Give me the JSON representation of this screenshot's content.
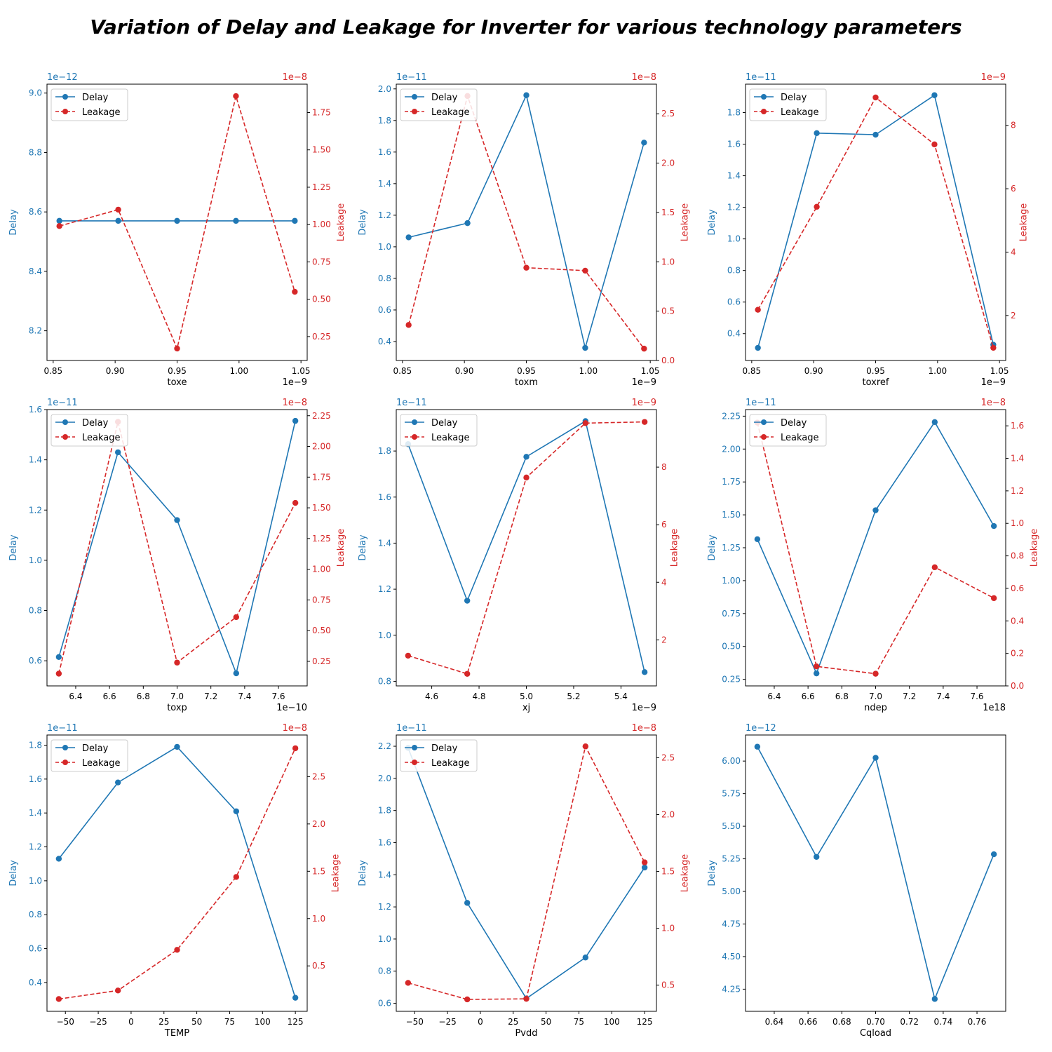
{
  "title": "Variation of Delay and Leakage for Inverter for various technology parameters",
  "colors": {
    "delay": "#1f77b4",
    "leakage": "#d62728",
    "axis": "#000000",
    "legend_border": "#cccccc"
  },
  "legend": {
    "delay_label": "Delay",
    "leakage_label": "Leakage"
  },
  "chart_data": [
    {
      "type": "line",
      "xlabel": "toxe",
      "ylabel": "Delay",
      "y2label": "Leakage",
      "x": [
        0.855,
        0.9025,
        0.95,
        0.9975,
        1.045
      ],
      "x_offset": "1e−9",
      "xlim": [
        0.845,
        1.055
      ],
      "xticks": [
        0.85,
        0.9,
        0.95,
        1.0,
        1.05
      ],
      "xtick_labels": [
        "0.85",
        "0.90",
        "0.95",
        "1.00",
        "1.05"
      ],
      "delay": [
        8.57,
        8.57,
        8.57,
        8.57,
        8.57
      ],
      "y_offset": "1e−12",
      "ylim": [
        8.1,
        9.03
      ],
      "yticks": [
        8.2,
        8.4,
        8.6,
        8.8,
        9.0
      ],
      "ytick_labels": [
        "8.2",
        "8.4",
        "8.6",
        "8.8",
        "9.0"
      ],
      "leakage": [
        0.99,
        1.1,
        0.17,
        1.86,
        0.55
      ],
      "y2_offset": "1e−8",
      "y2lim": [
        0.09,
        1.94
      ],
      "y2ticks": [
        0.25,
        0.5,
        0.75,
        1.0,
        1.25,
        1.5,
        1.75
      ],
      "y2tick_labels": [
        "0.25",
        "0.50",
        "0.75",
        "1.00",
        "1.25",
        "1.50",
        "1.75"
      ]
    },
    {
      "type": "line",
      "xlabel": "toxm",
      "ylabel": "Delay",
      "y2label": "Leakage",
      "x": [
        0.855,
        0.9025,
        0.95,
        0.9975,
        1.045
      ],
      "x_offset": "1e−9",
      "xlim": [
        0.845,
        1.055
      ],
      "xticks": [
        0.85,
        0.9,
        0.95,
        1.0,
        1.05
      ],
      "xtick_labels": [
        "0.85",
        "0.90",
        "0.95",
        "1.00",
        "1.05"
      ],
      "delay": [
        1.06,
        1.15,
        1.96,
        0.36,
        1.66
      ],
      "y_offset": "1e−11",
      "ylim": [
        0.28,
        2.03
      ],
      "yticks": [
        0.4,
        0.6,
        0.8,
        1.0,
        1.2,
        1.4,
        1.6,
        1.8,
        2.0
      ],
      "ytick_labels": [
        "0.4",
        "0.6",
        "0.8",
        "1.0",
        "1.2",
        "1.4",
        "1.6",
        "1.8",
        "2.0"
      ],
      "leakage": [
        0.36,
        2.68,
        0.94,
        0.91,
        0.12
      ],
      "y2_offset": "1e−8",
      "y2lim": [
        0.0,
        2.8
      ],
      "y2ticks": [
        0.0,
        0.5,
        1.0,
        1.5,
        2.0,
        2.5
      ],
      "y2tick_labels": [
        "0.0",
        "0.5",
        "1.0",
        "1.5",
        "2.0",
        "2.5"
      ]
    },
    {
      "type": "line",
      "xlabel": "toxref",
      "ylabel": "Delay",
      "y2label": "Leakage",
      "x": [
        0.855,
        0.9025,
        0.95,
        0.9975,
        1.045
      ],
      "x_offset": "1e−9",
      "xlim": [
        0.845,
        1.055
      ],
      "xticks": [
        0.85,
        0.9,
        0.95,
        1.0,
        1.05
      ],
      "xtick_labels": [
        "0.85",
        "0.90",
        "0.95",
        "1.00",
        "1.05"
      ],
      "delay": [
        0.31,
        1.67,
        1.66,
        1.91,
        0.33
      ],
      "y_offset": "1e−11",
      "ylim": [
        0.23,
        1.98
      ],
      "yticks": [
        0.4,
        0.6,
        0.8,
        1.0,
        1.2,
        1.4,
        1.6,
        1.8
      ],
      "ytick_labels": [
        "0.4",
        "0.6",
        "0.8",
        "1.0",
        "1.2",
        "1.4",
        "1.6",
        "1.8"
      ],
      "leakage": [
        2.18,
        5.43,
        8.88,
        7.4,
        0.98
      ],
      "y2_offset": "1e−9",
      "y2lim": [
        0.58,
        9.3
      ],
      "y2ticks": [
        2,
        4,
        6,
        8
      ],
      "y2tick_labels": [
        "2",
        "4",
        "6",
        "8"
      ]
    },
    {
      "type": "line",
      "xlabel": "toxp",
      "ylabel": "Delay",
      "y2label": "Leakage",
      "x": [
        6.3,
        6.65,
        7.0,
        7.35,
        7.7
      ],
      "x_offset": "1e−10",
      "xlim": [
        6.23,
        7.77
      ],
      "xticks": [
        6.4,
        6.6,
        6.8,
        7.0,
        7.2,
        7.4,
        7.6
      ],
      "xtick_labels": [
        "6.4",
        "6.6",
        "6.8",
        "7.0",
        "7.2",
        "7.4",
        "7.6"
      ],
      "delay": [
        0.615,
        1.43,
        1.16,
        0.55,
        1.555
      ],
      "y_offset": "1e−11",
      "ylim": [
        0.5,
        1.6
      ],
      "yticks": [
        0.6,
        0.8,
        1.0,
        1.2,
        1.4,
        1.6
      ],
      "ytick_labels": [
        "0.6",
        "0.8",
        "1.0",
        "1.2",
        "1.4",
        "1.6"
      ],
      "leakage": [
        0.15,
        2.2,
        0.24,
        0.61,
        1.54
      ],
      "y2_offset": "1e−8",
      "y2lim": [
        0.05,
        2.3
      ],
      "y2ticks": [
        0.25,
        0.5,
        0.75,
        1.0,
        1.25,
        1.5,
        1.75,
        2.0,
        2.25
      ],
      "y2tick_labels": [
        "0.25",
        "0.50",
        "0.75",
        "1.00",
        "1.25",
        "1.50",
        "1.75",
        "2.00",
        "2.25"
      ]
    },
    {
      "type": "line",
      "xlabel": "xj",
      "ylabel": "Delay",
      "y2label": "Leakage",
      "x": [
        4.5,
        4.75,
        5.0,
        5.25,
        5.5
      ],
      "x_offset": "1e−9",
      "xlim": [
        4.45,
        5.55
      ],
      "xticks": [
        4.6,
        4.8,
        5.0,
        5.2,
        5.4
      ],
      "xtick_labels": [
        "4.6",
        "4.8",
        "5.0",
        "5.2",
        "5.4"
      ],
      "delay": [
        1.83,
        1.15,
        1.775,
        1.93,
        0.84
      ],
      "y_offset": "1e−11",
      "ylim": [
        0.78,
        1.98
      ],
      "yticks": [
        0.8,
        1.0,
        1.2,
        1.4,
        1.6,
        1.8
      ],
      "ytick_labels": [
        "0.8",
        "1.0",
        "1.2",
        "1.4",
        "1.6",
        "1.8"
      ],
      "leakage": [
        1.45,
        0.82,
        7.64,
        9.53,
        9.57
      ],
      "y2_offset": "1e−9",
      "y2lim": [
        0.4,
        10.0
      ],
      "y2ticks": [
        2,
        4,
        6,
        8
      ],
      "y2tick_labels": [
        "2",
        "4",
        "6",
        "8"
      ]
    },
    {
      "type": "line",
      "xlabel": "ndep",
      "ylabel": "Delay",
      "y2label": "Leakage",
      "x": [
        6.3,
        6.65,
        7.0,
        7.35,
        7.7
      ],
      "x_offset": "1e18",
      "xlim": [
        6.23,
        7.77
      ],
      "xticks": [
        6.4,
        6.6,
        6.8,
        7.0,
        7.2,
        7.4,
        7.6
      ],
      "xtick_labels": [
        "6.4",
        "6.6",
        "6.8",
        "7.0",
        "7.2",
        "7.4",
        "7.6"
      ],
      "delay": [
        1.315,
        0.295,
        1.535,
        2.205,
        1.415
      ],
      "y_offset": "1e−11",
      "ylim": [
        0.2,
        2.3
      ],
      "yticks": [
        0.25,
        0.5,
        0.75,
        1.0,
        1.25,
        1.5,
        1.75,
        2.0,
        2.25
      ],
      "ytick_labels": [
        "0.25",
        "0.50",
        "0.75",
        "1.00",
        "1.25",
        "1.50",
        "1.75",
        "2.00",
        "2.25"
      ],
      "leakage": [
        1.62,
        0.12,
        0.075,
        0.73,
        0.54
      ],
      "y2_offset": "1e−8",
      "y2lim": [
        0.0,
        1.7
      ],
      "y2ticks": [
        0.0,
        0.2,
        0.4,
        0.6,
        0.8,
        1.0,
        1.2,
        1.4,
        1.6
      ],
      "y2tick_labels": [
        "0.0",
        "0.2",
        "0.4",
        "0.6",
        "0.8",
        "1.0",
        "1.2",
        "1.4",
        "1.6"
      ]
    },
    {
      "type": "line",
      "xlabel": "TEMP",
      "ylabel": "Delay",
      "y2label": "Leakage",
      "x": [
        -55,
        -10,
        35,
        80,
        125
      ],
      "x_offset": "",
      "xlim": [
        -64,
        134
      ],
      "xticks": [
        -50,
        -25,
        0,
        25,
        50,
        75,
        100,
        125
      ],
      "xtick_labels": [
        "−50",
        "−25",
        "0",
        "25",
        "50",
        "75",
        "100",
        "125"
      ],
      "delay": [
        1.13,
        1.58,
        1.79,
        1.41,
        0.31
      ],
      "y_offset": "1e−11",
      "ylim": [
        0.23,
        1.86
      ],
      "yticks": [
        0.4,
        0.6,
        0.8,
        1.0,
        1.2,
        1.4,
        1.6,
        1.8
      ],
      "ytick_labels": [
        "0.4",
        "0.6",
        "0.8",
        "1.0",
        "1.2",
        "1.4",
        "1.6",
        "1.8"
      ],
      "leakage": [
        0.15,
        0.24,
        0.67,
        1.44,
        2.8
      ],
      "y2_offset": "1e−8",
      "y2lim": [
        0.02,
        2.94
      ],
      "y2ticks": [
        0.5,
        1.0,
        1.5,
        2.0,
        2.5
      ],
      "y2tick_labels": [
        "0.5",
        "1.0",
        "1.5",
        "2.0",
        "2.5"
      ]
    },
    {
      "type": "line",
      "xlabel": "Pvdd",
      "ylabel": "Delay",
      "y2label": "Leakage",
      "x": [
        -55,
        -10,
        35,
        80,
        125
      ],
      "x_offset": "",
      "xlim": [
        -64,
        134
      ],
      "xticks": [
        -50,
        -25,
        0,
        25,
        50,
        75,
        100,
        125
      ],
      "xtick_labels": [
        "−50",
        "−25",
        "0",
        "25",
        "50",
        "75",
        "100",
        "125"
      ],
      "delay": [
        2.19,
        1.225,
        0.63,
        0.885,
        1.445
      ],
      "y_offset": "1e−11",
      "ylim": [
        0.55,
        2.27
      ],
      "yticks": [
        0.6,
        0.8,
        1.0,
        1.2,
        1.4,
        1.6,
        1.8,
        2.0,
        2.2
      ],
      "ytick_labels": [
        "0.6",
        "0.8",
        "1.0",
        "1.2",
        "1.4",
        "1.6",
        "1.8",
        "2.0",
        "2.2"
      ],
      "leakage": [
        0.52,
        0.375,
        0.38,
        2.6,
        1.58
      ],
      "y2_offset": "1e−8",
      "y2lim": [
        0.27,
        2.7
      ],
      "y2ticks": [
        0.5,
        1.0,
        1.5,
        2.0,
        2.5
      ],
      "y2tick_labels": [
        "0.5",
        "1.0",
        "1.5",
        "2.0",
        "2.5"
      ]
    },
    {
      "type": "line",
      "xlabel": "Cqload",
      "ylabel": "Delay",
      "x": [
        0.63,
        0.665,
        0.7,
        0.735,
        0.77
      ],
      "x_offset": "",
      "xlim": [
        0.623,
        0.777
      ],
      "xticks": [
        0.64,
        0.66,
        0.68,
        0.7,
        0.72,
        0.74,
        0.76
      ],
      "xtick_labels": [
        "0.64",
        "0.66",
        "0.68",
        "0.70",
        "0.72",
        "0.74",
        "0.76"
      ],
      "delay": [
        6.11,
        5.265,
        6.025,
        4.175,
        5.285
      ],
      "y_offset": "1e−12",
      "ylim": [
        4.08,
        6.2
      ],
      "yticks": [
        4.25,
        4.5,
        4.75,
        5.0,
        5.25,
        5.5,
        5.75,
        6.0
      ],
      "ytick_labels": [
        "4.25",
        "4.50",
        "4.75",
        "5.00",
        "5.25",
        "5.50",
        "5.75",
        "6.00"
      ]
    }
  ]
}
